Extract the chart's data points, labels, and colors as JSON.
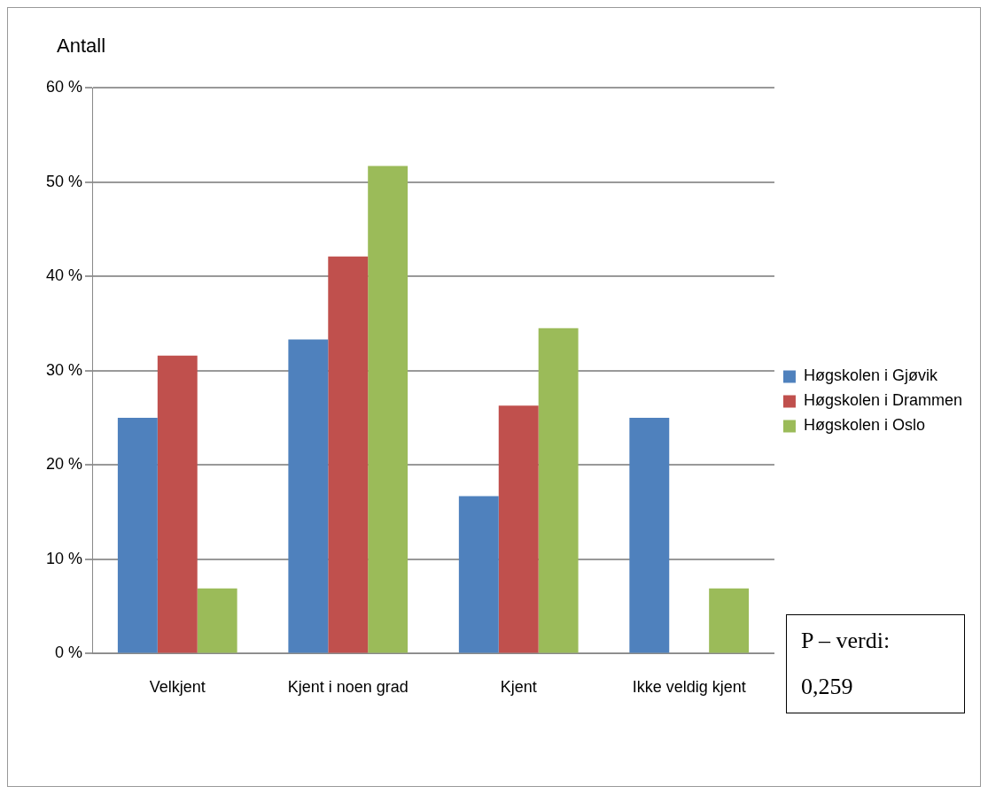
{
  "chart_data": {
    "type": "bar",
    "ylabel": "Antall",
    "categories": [
      "Velkjent",
      "Kjent i noen grad",
      "Kjent",
      "Ikke veldig kjent"
    ],
    "series": [
      {
        "name": "Høgskolen i Gjøvik",
        "color": "#4f81bd",
        "values": [
          25,
          33.3,
          16.7,
          25
        ]
      },
      {
        "name": "Høgskolen i Drammen",
        "color": "#c0504d",
        "values": [
          31.6,
          42.1,
          26.3,
          0
        ]
      },
      {
        "name": "Høgskolen i Oslo",
        "color": "#9bbb59",
        "values": [
          6.9,
          51.7,
          34.5,
          6.9
        ]
      }
    ],
    "ylim": [
      0,
      60
    ],
    "yticks": [
      {
        "value": 0,
        "label": "0 %"
      },
      {
        "value": 10,
        "label": "10 %"
      },
      {
        "value": 20,
        "label": "20 %"
      },
      {
        "value": 30,
        "label": "30 %"
      },
      {
        "value": 40,
        "label": "40 %"
      },
      {
        "value": 50,
        "label": "50 %"
      },
      {
        "value": 60,
        "label": "60 %"
      }
    ],
    "grid": "y",
    "legend": "right",
    "annotations": [
      "P – verdi:",
      "0,259"
    ]
  }
}
